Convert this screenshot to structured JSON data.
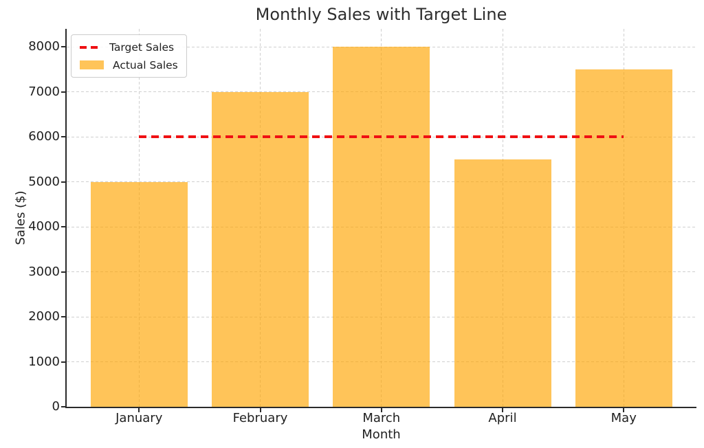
{
  "chart_data": {
    "type": "bar",
    "title": "Monthly Sales with Target Line",
    "xlabel": "Month",
    "ylabel": "Sales ($)",
    "categories": [
      "January",
      "February",
      "March",
      "April",
      "May"
    ],
    "series": [
      {
        "name": "Actual Sales",
        "kind": "bar",
        "values": [
          5000,
          7000,
          8000,
          5500,
          7500
        ],
        "color": "#ffa500",
        "opacity": 0.65
      },
      {
        "name": "Target Sales",
        "kind": "line",
        "style": "dashed",
        "values": [
          6000,
          6000,
          6000,
          6000,
          6000
        ],
        "color": "#ef1013"
      }
    ],
    "target_value": 6000,
    "ylim": [
      0,
      8400
    ],
    "yticks": [
      0,
      1000,
      2000,
      3000,
      4000,
      5000,
      6000,
      7000,
      8000
    ],
    "grid": {
      "visible": true,
      "style": "dashed",
      "color": "#cfcfcf"
    },
    "legend": {
      "position": "upper-left",
      "entries": [
        {
          "label": "Target Sales",
          "swatch": "dashed-line",
          "color": "#ef1013"
        },
        {
          "label": "Actual Sales",
          "swatch": "rect",
          "color": "#ffa500",
          "opacity": 0.65
        }
      ]
    },
    "colors": {
      "spine": "#2a2a2a",
      "text": "#1f1f1f",
      "title": "#2e2e2e"
    }
  }
}
